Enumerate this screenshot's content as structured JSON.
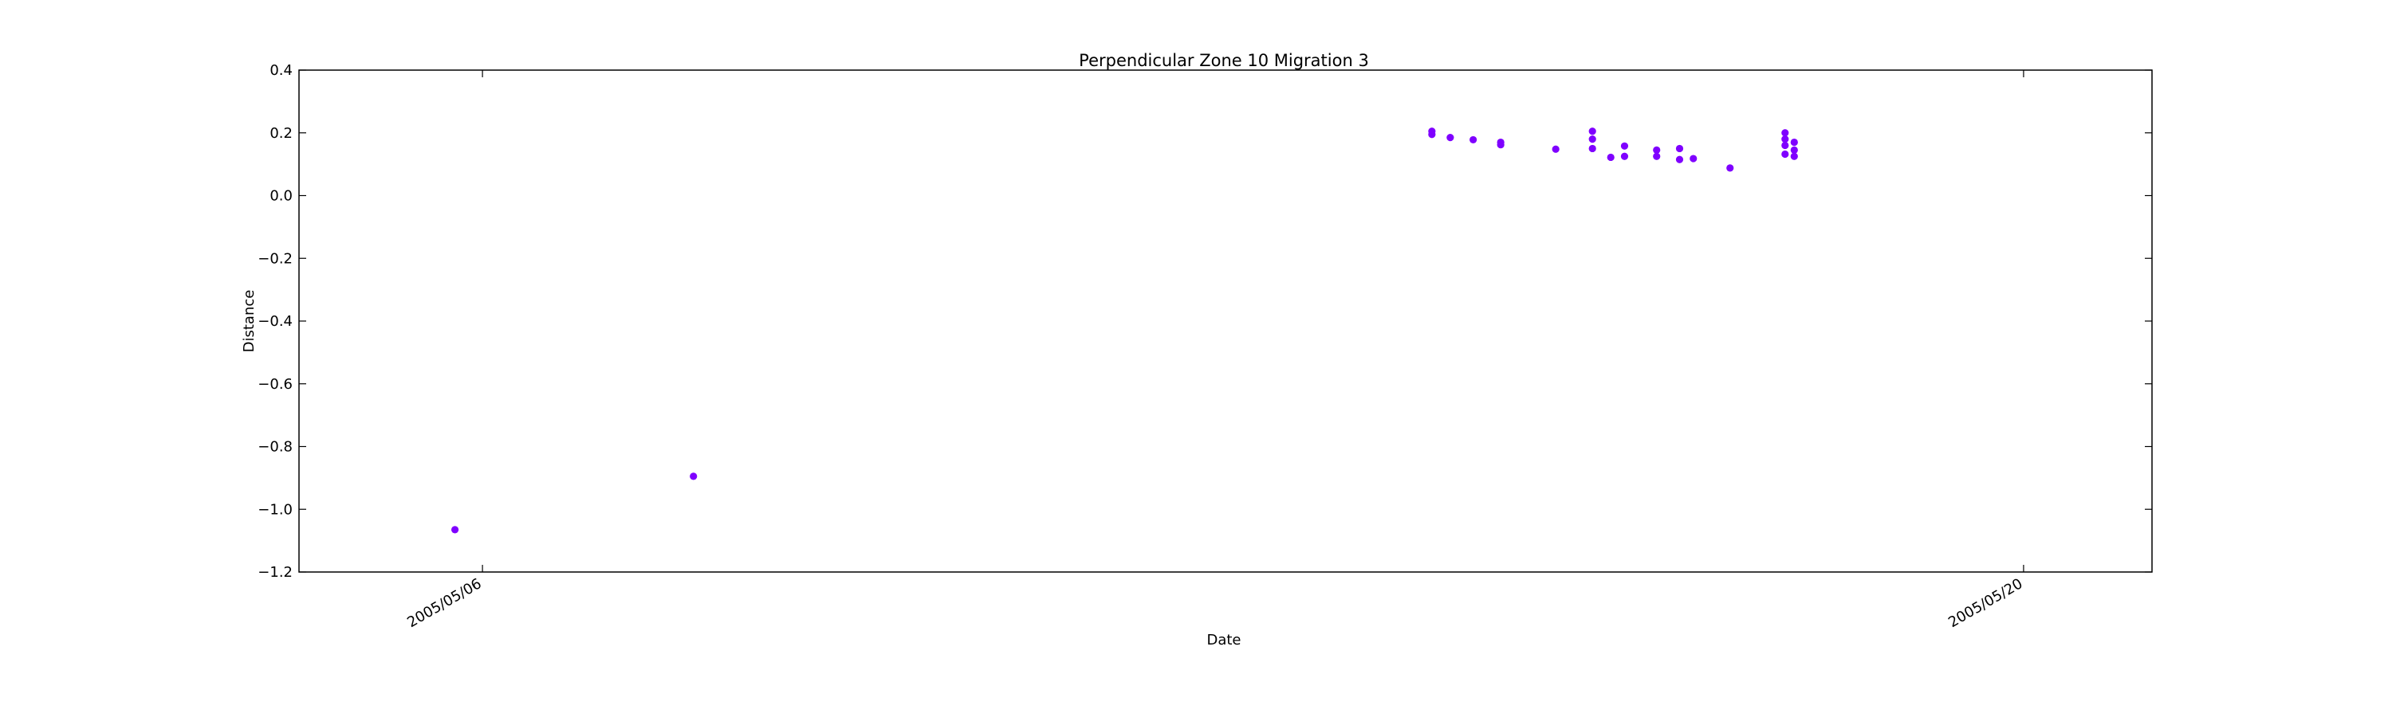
{
  "chart_data": {
    "type": "scatter",
    "title": "Perpendicular Zone 10 Migration 3",
    "xlabel": "Date",
    "ylabel": "Distance",
    "ylim": [
      -1.2,
      0.4
    ],
    "yticks": [
      0.4,
      0.2,
      0.0,
      -0.2,
      -0.4,
      -0.6,
      -0.8,
      -1.0,
      -1.2
    ],
    "ytick_labels": [
      "0.4",
      "0.2",
      "0.0",
      "−0.2",
      "−0.4",
      "−0.6",
      "−0.8",
      "−1.0",
      "−1.2"
    ],
    "xlim": [
      "2005-05-04T08:00",
      "2005-05-21T04:00"
    ],
    "xticks": [
      "2005-05-06",
      "2005-05-20"
    ],
    "xtick_labels": [
      "2005/05/06",
      "2005/05/20"
    ],
    "grid": false,
    "marker_color": "#7f00ff",
    "points": [
      {
        "x": "2005-05-05T18:00",
        "y": -1.065
      },
      {
        "x": "2005-05-07T22:00",
        "y": -0.895
      },
      {
        "x": "2005-05-14T15:00",
        "y": 0.205
      },
      {
        "x": "2005-05-14T15:00",
        "y": 0.195
      },
      {
        "x": "2005-05-14T19:00",
        "y": 0.185
      },
      {
        "x": "2005-05-15T00:00",
        "y": 0.178
      },
      {
        "x": "2005-05-15T06:00",
        "y": 0.17
      },
      {
        "x": "2005-05-15T06:00",
        "y": 0.162
      },
      {
        "x": "2005-05-15T18:00",
        "y": 0.148
      },
      {
        "x": "2005-05-16T02:00",
        "y": 0.205
      },
      {
        "x": "2005-05-16T02:00",
        "y": 0.18
      },
      {
        "x": "2005-05-16T02:00",
        "y": 0.15
      },
      {
        "x": "2005-05-16T06:00",
        "y": 0.122
      },
      {
        "x": "2005-05-16T09:00",
        "y": 0.158
      },
      {
        "x": "2005-05-16T09:00",
        "y": 0.125
      },
      {
        "x": "2005-05-16T16:00",
        "y": 0.145
      },
      {
        "x": "2005-05-16T16:00",
        "y": 0.125
      },
      {
        "x": "2005-05-16T21:00",
        "y": 0.15
      },
      {
        "x": "2005-05-16T21:00",
        "y": 0.115
      },
      {
        "x": "2005-05-17T00:00",
        "y": 0.118
      },
      {
        "x": "2005-05-17T08:00",
        "y": 0.088
      },
      {
        "x": "2005-05-17T20:00",
        "y": 0.2
      },
      {
        "x": "2005-05-17T20:00",
        "y": 0.18
      },
      {
        "x": "2005-05-17T20:00",
        "y": 0.16
      },
      {
        "x": "2005-05-17T20:00",
        "y": 0.132
      },
      {
        "x": "2005-05-17T22:00",
        "y": 0.17
      },
      {
        "x": "2005-05-17T22:00",
        "y": 0.145
      },
      {
        "x": "2005-05-17T22:00",
        "y": 0.125
      }
    ]
  }
}
